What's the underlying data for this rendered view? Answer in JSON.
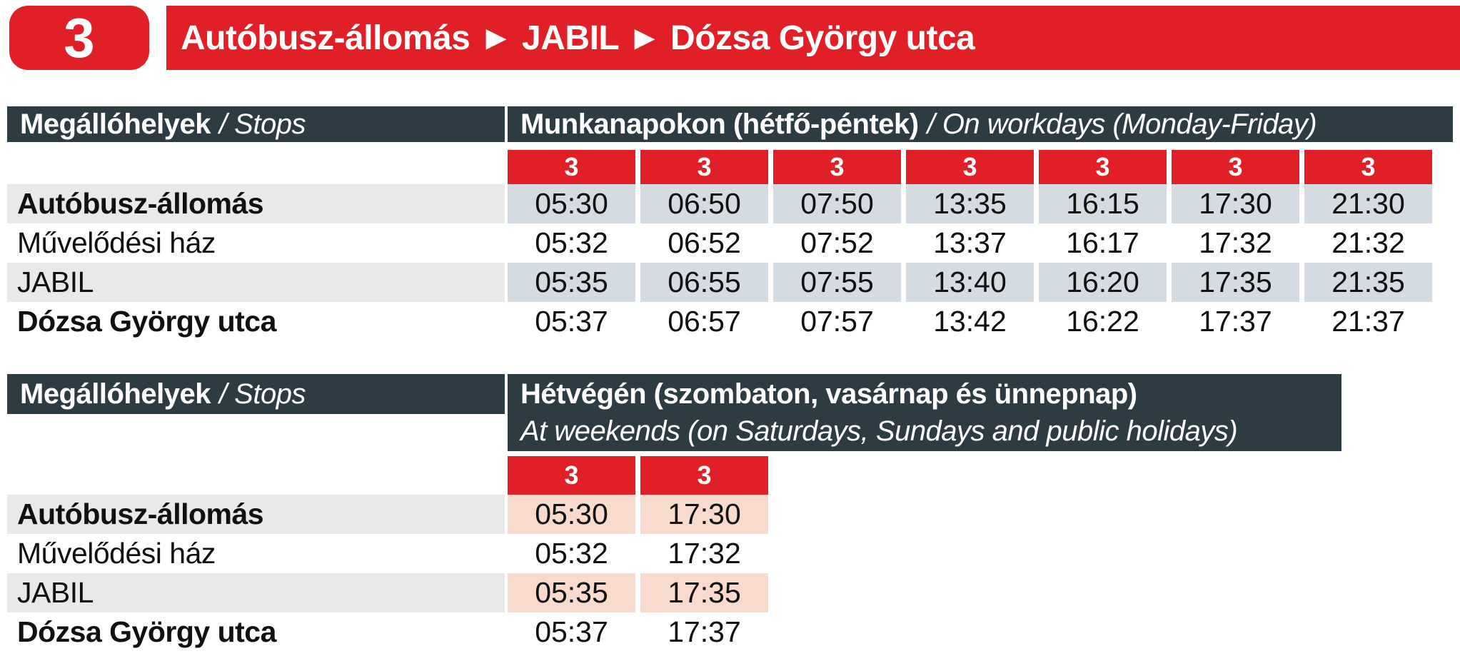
{
  "header": {
    "route_number": "3",
    "title": "Autóbusz-állomás ► JABIL ► Dózsa György utca"
  },
  "colors": {
    "brand_red": "#e01f26",
    "header_dark_teal": "#2d3c43",
    "workday_time_highlight": "#d4dbe3",
    "weekend_time_highlight": "#f8dbcc",
    "stop_row_highlight": "#e9e9e9"
  },
  "stops_header": {
    "hu": "Megállóhelyek",
    "en": "/ Stops"
  },
  "tables": [
    {
      "name": "workdays",
      "service_header": {
        "hu": "Munkanapokon (hétfő-péntek)",
        "en": "/ On workdays (Monday-Friday)"
      },
      "route_labels": [
        "3",
        "3",
        "3",
        "3",
        "3",
        "3",
        "3"
      ],
      "rows": [
        {
          "stop": "Autóbusz-állomás",
          "times": [
            "05:30",
            "06:50",
            "07:50",
            "13:35",
            "16:15",
            "17:30",
            "21:30"
          ]
        },
        {
          "stop": "Művelődési ház",
          "times": [
            "05:32",
            "06:52",
            "07:52",
            "13:37",
            "16:17",
            "17:32",
            "21:32"
          ]
        },
        {
          "stop": "JABIL",
          "times": [
            "05:35",
            "06:55",
            "07:55",
            "13:40",
            "16:20",
            "17:35",
            "21:35"
          ]
        },
        {
          "stop": "Dózsa György utca",
          "times": [
            "05:37",
            "06:57",
            "07:57",
            "13:42",
            "16:22",
            "17:37",
            "21:37"
          ]
        }
      ]
    },
    {
      "name": "weekend",
      "service_header": {
        "hu": "Hétvégén (szombaton, vasárnap és ünnepnap)",
        "en": "At weekends (on Saturdays, Sundays and public holidays)"
      },
      "route_labels": [
        "3",
        "3"
      ],
      "rows": [
        {
          "stop": "Autóbusz-állomás",
          "times": [
            "05:30",
            "17:30"
          ]
        },
        {
          "stop": "Művelődési ház",
          "times": [
            "05:32",
            "17:32"
          ]
        },
        {
          "stop": "JABIL",
          "times": [
            "05:35",
            "17:35"
          ]
        },
        {
          "stop": "Dózsa György utca",
          "times": [
            "05:37",
            "17:37"
          ]
        }
      ]
    }
  ]
}
